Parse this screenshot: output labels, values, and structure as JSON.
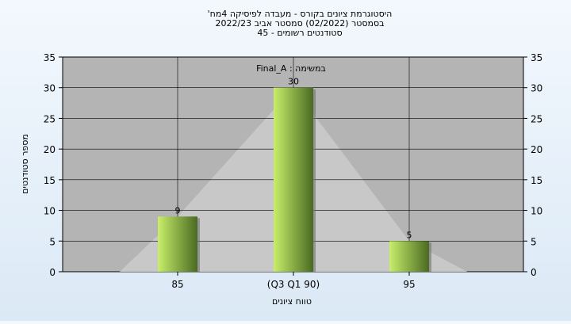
{
  "chart_data": {
    "type": "bar",
    "title_lines": [
      "'היסטוגרמת ציונים בקורס - מעבדה לפיסיקה 4מח",
      "בסמסטר  (02/2022)  סמסטר אביב 2022/23",
      "סטודנטים רשומים - 45"
    ],
    "xlabel": "טווח ציונים",
    "ylabel": "מספר סטודנטים",
    "annotation": "Final_A : במשימה",
    "categories": [
      "85",
      "(Q3 Q1 90)",
      "95"
    ],
    "values": [
      9,
      30,
      5
    ],
    "ylim": [
      0,
      35
    ],
    "yticks": [
      "0",
      "5",
      "10",
      "15",
      "20",
      "25",
      "30",
      "35"
    ],
    "grid": true,
    "secondary_y_axis": true,
    "colors": {
      "bar_light": "#c8ee6a",
      "bar_dark": "#4a6a22",
      "plot_bg": "#b4b4b4",
      "area": "#c8c8c8",
      "grid": "#000000"
    }
  }
}
